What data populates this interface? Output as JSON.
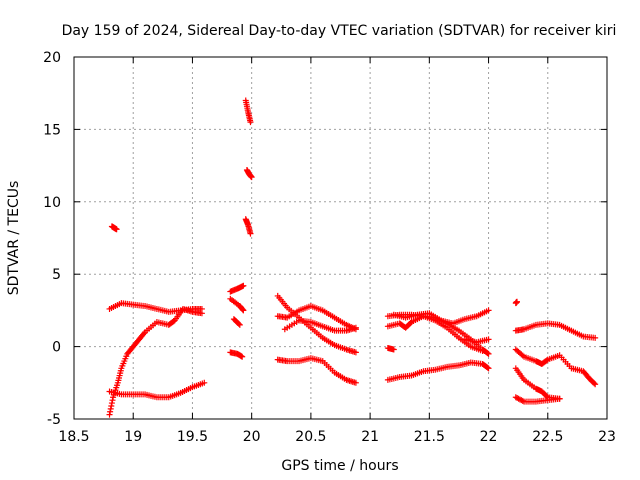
{
  "chart_data": {
    "type": "scatter",
    "title": "Day 159 of 2024, Sidereal Day-to-day VTEC variation (SDTVAR) for receiver kiri",
    "xlabel": "GPS time / hours",
    "ylabel": "SDTVAR / TECUs",
    "xlim": [
      18.5,
      23
    ],
    "ylim": [
      -5,
      20
    ],
    "x_ticks": [
      "18.5",
      "19",
      "19.5",
      "20",
      "20.5",
      "21",
      "21.5",
      "22",
      "22.5",
      "23"
    ],
    "y_ticks": [
      "-5",
      "0",
      "5",
      "10",
      "15",
      "20"
    ],
    "grid": true,
    "marker": "+",
    "color": "#ff0000",
    "series": [
      {
        "name": "s1",
        "points": [
          [
            18.82,
            8.3
          ],
          [
            18.84,
            8.2
          ],
          [
            18.86,
            8.1
          ]
        ]
      },
      {
        "name": "s2",
        "points": [
          [
            18.8,
            2.6
          ],
          [
            18.9,
            3.0
          ],
          [
            19.0,
            2.9
          ],
          [
            19.1,
            2.8
          ],
          [
            19.2,
            2.6
          ],
          [
            19.3,
            2.4
          ],
          [
            19.4,
            2.5
          ],
          [
            19.5,
            2.6
          ],
          [
            19.58,
            2.6
          ]
        ]
      },
      {
        "name": "s3",
        "points": [
          [
            18.8,
            -4.7
          ],
          [
            18.83,
            -3.5
          ],
          [
            18.87,
            -2.5
          ],
          [
            18.9,
            -1.5
          ],
          [
            18.95,
            -0.5
          ],
          [
            19.0,
            0.0
          ],
          [
            19.05,
            0.5
          ],
          [
            19.1,
            1.0
          ],
          [
            19.2,
            1.7
          ],
          [
            19.3,
            1.5
          ],
          [
            19.35,
            1.8
          ],
          [
            19.42,
            2.6
          ],
          [
            19.5,
            2.4
          ],
          [
            19.58,
            2.3
          ]
        ]
      },
      {
        "name": "s4",
        "points": [
          [
            18.8,
            -3.1
          ],
          [
            18.9,
            -3.3
          ],
          [
            19.0,
            -3.3
          ],
          [
            19.1,
            -3.3
          ],
          [
            19.2,
            -3.5
          ],
          [
            19.3,
            -3.5
          ],
          [
            19.4,
            -3.2
          ],
          [
            19.5,
            -2.8
          ],
          [
            19.6,
            -2.5
          ]
        ]
      },
      {
        "name": "s5",
        "points": [
          [
            19.82,
            3.8
          ],
          [
            19.88,
            4.0
          ],
          [
            19.93,
            4.2
          ]
        ]
      },
      {
        "name": "s6",
        "points": [
          [
            19.82,
            3.3
          ],
          [
            19.9,
            2.8
          ],
          [
            19.93,
            2.5
          ]
        ]
      },
      {
        "name": "s7",
        "points": [
          [
            19.85,
            1.9
          ],
          [
            19.9,
            1.5
          ]
        ]
      },
      {
        "name": "s8",
        "points": [
          [
            19.82,
            -0.4
          ],
          [
            19.88,
            -0.5
          ],
          [
            19.92,
            -0.7
          ]
        ]
      },
      {
        "name": "s9",
        "points": [
          [
            19.95,
            17.0
          ],
          [
            19.97,
            16.2
          ],
          [
            19.99,
            15.5
          ]
        ]
      },
      {
        "name": "s10",
        "points": [
          [
            19.96,
            12.2
          ],
          [
            19.98,
            11.9
          ],
          [
            20.0,
            11.7
          ]
        ]
      },
      {
        "name": "s11",
        "points": [
          [
            19.95,
            8.8
          ],
          [
            19.97,
            8.4
          ],
          [
            19.99,
            7.8
          ]
        ]
      },
      {
        "name": "s12",
        "points": [
          [
            20.22,
            3.5
          ],
          [
            20.3,
            2.7
          ],
          [
            20.4,
            2.0
          ],
          [
            20.5,
            1.3
          ],
          [
            20.6,
            0.6
          ],
          [
            20.7,
            0.1
          ],
          [
            20.8,
            -0.2
          ],
          [
            20.88,
            -0.4
          ]
        ]
      },
      {
        "name": "s13",
        "points": [
          [
            20.22,
            2.1
          ],
          [
            20.3,
            2.0
          ],
          [
            20.4,
            2.5
          ],
          [
            20.5,
            2.8
          ],
          [
            20.6,
            2.5
          ],
          [
            20.7,
            2.0
          ],
          [
            20.8,
            1.5
          ],
          [
            20.88,
            1.2
          ]
        ]
      },
      {
        "name": "s14",
        "points": [
          [
            20.28,
            1.2
          ],
          [
            20.4,
            1.8
          ],
          [
            20.5,
            1.7
          ],
          [
            20.6,
            1.4
          ],
          [
            20.7,
            1.1
          ],
          [
            20.8,
            1.1
          ],
          [
            20.88,
            1.3
          ]
        ]
      },
      {
        "name": "s15",
        "points": [
          [
            20.22,
            -0.9
          ],
          [
            20.3,
            -1.0
          ],
          [
            20.4,
            -1.0
          ],
          [
            20.5,
            -0.8
          ],
          [
            20.6,
            -1.0
          ],
          [
            20.7,
            -1.8
          ],
          [
            20.8,
            -2.3
          ],
          [
            20.88,
            -2.5
          ]
        ]
      },
      {
        "name": "s16",
        "points": [
          [
            21.15,
            2.1
          ],
          [
            21.25,
            2.2
          ],
          [
            21.35,
            2.2
          ],
          [
            21.45,
            2.1
          ],
          [
            21.55,
            2.0
          ],
          [
            21.65,
            1.6
          ],
          [
            21.75,
            1.1
          ],
          [
            21.85,
            0.5
          ],
          [
            21.95,
            -0.2
          ],
          [
            22.0,
            -0.5
          ]
        ]
      },
      {
        "name": "s17",
        "points": [
          [
            21.15,
            1.4
          ],
          [
            21.25,
            1.6
          ],
          [
            21.3,
            1.3
          ],
          [
            21.35,
            1.7
          ],
          [
            21.45,
            2.1
          ],
          [
            21.55,
            1.8
          ],
          [
            21.65,
            1.3
          ],
          [
            21.75,
            0.6
          ],
          [
            21.85,
            0.0
          ],
          [
            21.95,
            -0.3
          ]
        ]
      },
      {
        "name": "s18",
        "points": [
          [
            21.2,
            2.2
          ],
          [
            21.3,
            2.0
          ],
          [
            21.4,
            2.2
          ],
          [
            21.5,
            2.3
          ],
          [
            21.6,
            1.8
          ],
          [
            21.7,
            1.6
          ],
          [
            21.8,
            1.9
          ],
          [
            21.9,
            2.1
          ],
          [
            22.0,
            2.5
          ]
        ]
      },
      {
        "name": "s19",
        "points": [
          [
            21.15,
            -0.1
          ],
          [
            21.2,
            -0.2
          ]
        ]
      },
      {
        "name": "s20",
        "points": [
          [
            21.8,
            0.5
          ],
          [
            21.9,
            0.3
          ],
          [
            22.0,
            0.5
          ]
        ]
      },
      {
        "name": "s21",
        "points": [
          [
            21.15,
            -2.3
          ],
          [
            21.25,
            -2.1
          ],
          [
            21.35,
            -2.0
          ],
          [
            21.45,
            -1.7
          ],
          [
            21.55,
            -1.6
          ],
          [
            21.65,
            -1.4
          ],
          [
            21.75,
            -1.3
          ],
          [
            21.85,
            -1.1
          ],
          [
            21.95,
            -1.2
          ],
          [
            22.0,
            -1.5
          ]
        ]
      },
      {
        "name": "s22",
        "points": [
          [
            22.23,
            3.0
          ],
          [
            22.24,
            3.1
          ]
        ]
      },
      {
        "name": "s23",
        "points": [
          [
            22.23,
            1.1
          ],
          [
            22.3,
            1.2
          ],
          [
            22.4,
            1.5
          ],
          [
            22.5,
            1.6
          ],
          [
            22.6,
            1.5
          ],
          [
            22.7,
            1.1
          ],
          [
            22.8,
            0.7
          ],
          [
            22.9,
            0.6
          ]
        ]
      },
      {
        "name": "s24",
        "points": [
          [
            22.23,
            -0.2
          ],
          [
            22.3,
            -0.7
          ],
          [
            22.4,
            -1.0
          ],
          [
            22.45,
            -1.2
          ],
          [
            22.5,
            -0.9
          ],
          [
            22.6,
            -0.6
          ],
          [
            22.7,
            -1.5
          ],
          [
            22.8,
            -1.7
          ],
          [
            22.85,
            -2.2
          ],
          [
            22.9,
            -2.6
          ]
        ]
      },
      {
        "name": "s25",
        "points": [
          [
            22.23,
            -1.5
          ],
          [
            22.3,
            -2.3
          ],
          [
            22.4,
            -2.9
          ],
          [
            22.45,
            -3.1
          ],
          [
            22.5,
            -3.5
          ],
          [
            22.6,
            -3.6
          ]
        ]
      },
      {
        "name": "s26",
        "points": [
          [
            22.23,
            -3.5
          ],
          [
            22.3,
            -3.8
          ],
          [
            22.4,
            -3.8
          ],
          [
            22.5,
            -3.7
          ],
          [
            22.6,
            -3.6
          ]
        ]
      }
    ]
  }
}
